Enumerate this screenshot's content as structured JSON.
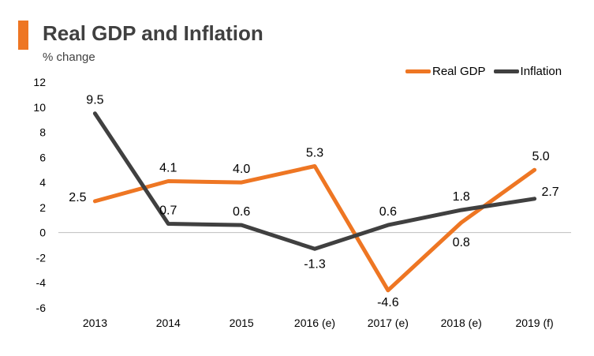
{
  "header": {
    "title": "Real GDP and Inflation",
    "subtitle": "% change"
  },
  "colors": {
    "accent": "#ee7623",
    "real_gdp": "#ee7623",
    "inflation": "#404040",
    "axis": "#bfbfbf",
    "text": "#000000"
  },
  "legend": {
    "real_gdp_label": "Real GDP",
    "inflation_label": "Inflation"
  },
  "chart_data": {
    "type": "line",
    "title": "Real GDP and Inflation",
    "ylabel": "% change",
    "xlabel": "",
    "categories": [
      "2013",
      "2014",
      "2015",
      "2016 (e)",
      "2017 (e)",
      "2018 (e)",
      "2019 (f)"
    ],
    "ylim": [
      -6,
      12
    ],
    "yticks": [
      12,
      10,
      8,
      6,
      4,
      2,
      0,
      -2,
      -4,
      -6
    ],
    "grid": false,
    "legend_position": "top-right",
    "series": [
      {
        "name": "Real GDP",
        "key": "real_gdp",
        "values": [
          2.5,
          4.1,
          4.0,
          5.3,
          -4.6,
          0.8,
          5.0
        ],
        "labels": [
          "2.5",
          "4.1",
          "4.0",
          "5.3",
          "-4.6",
          "0.8",
          "5.0"
        ]
      },
      {
        "name": "Inflation",
        "key": "inflation",
        "values": [
          9.5,
          0.7,
          0.6,
          -1.3,
          0.6,
          1.8,
          2.7
        ],
        "labels": [
          "9.5",
          "0.7",
          "0.6",
          "-1.3",
          "0.6",
          "1.8",
          "2.7"
        ]
      }
    ]
  }
}
